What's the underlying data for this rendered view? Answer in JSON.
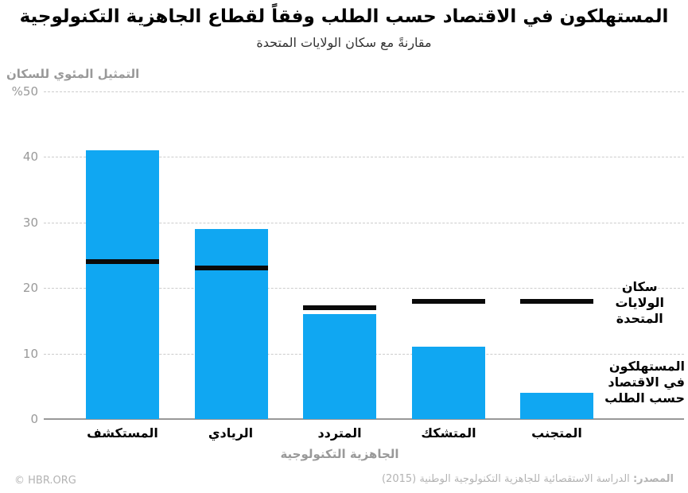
{
  "chart_data": {
    "type": "bar",
    "title": "المستهلكون في الاقتصاد حسب الطلب وفقاً لقطاع الجاهزية التكنولوجية",
    "subtitle": "مقارنةً مع سكان الولايات المتحدة",
    "categories": [
      "المستكشف",
      "الريادي",
      "المتردد",
      "المتشكك",
      "المتجنب"
    ],
    "series": [
      {
        "name": "المستهلكون في الاقتصاد حسب الطلب",
        "type": "bar",
        "color": "#10a7f2",
        "values": [
          41,
          29,
          16,
          11,
          4
        ]
      },
      {
        "name": "سكان الولايات المتحدة",
        "type": "line-marker",
        "color": "#0a0a0a",
        "values": [
          24,
          23,
          17,
          18,
          18
        ]
      }
    ],
    "xlabel": "الجاهزية التكنولوجية",
    "ylabel": "التمثيل المئوي للسكان",
    "ylim": [
      0,
      50
    ],
    "ytick_labels": [
      "%50",
      "40",
      "30",
      "20",
      "10",
      "0"
    ],
    "grid": "horizontal-dashed",
    "legend_position": "right"
  },
  "legend": {
    "us": {
      "lines": [
        "سكان",
        "الولايات",
        "المتحدة"
      ],
      "color": "#0a0a0a"
    },
    "consumers": {
      "lines": [
        "المستهلكون",
        "في الاقتصاد",
        "حسب الطلب"
      ],
      "color": "#10a7f2"
    }
  },
  "footer": {
    "copyright": "© HBR.ORG",
    "source_label": "المصدر:",
    "source_text": "الدراسة الاستقصائية للجاهزية التكنولوجية الوطنية (2015)"
  },
  "colors": {
    "bar_blue": "#10a7f2",
    "marker_black": "#0a0a0a",
    "grid_gray": "#cccccc",
    "axis_gray": "#999999",
    "footer_gray": "#b3b3b3"
  }
}
